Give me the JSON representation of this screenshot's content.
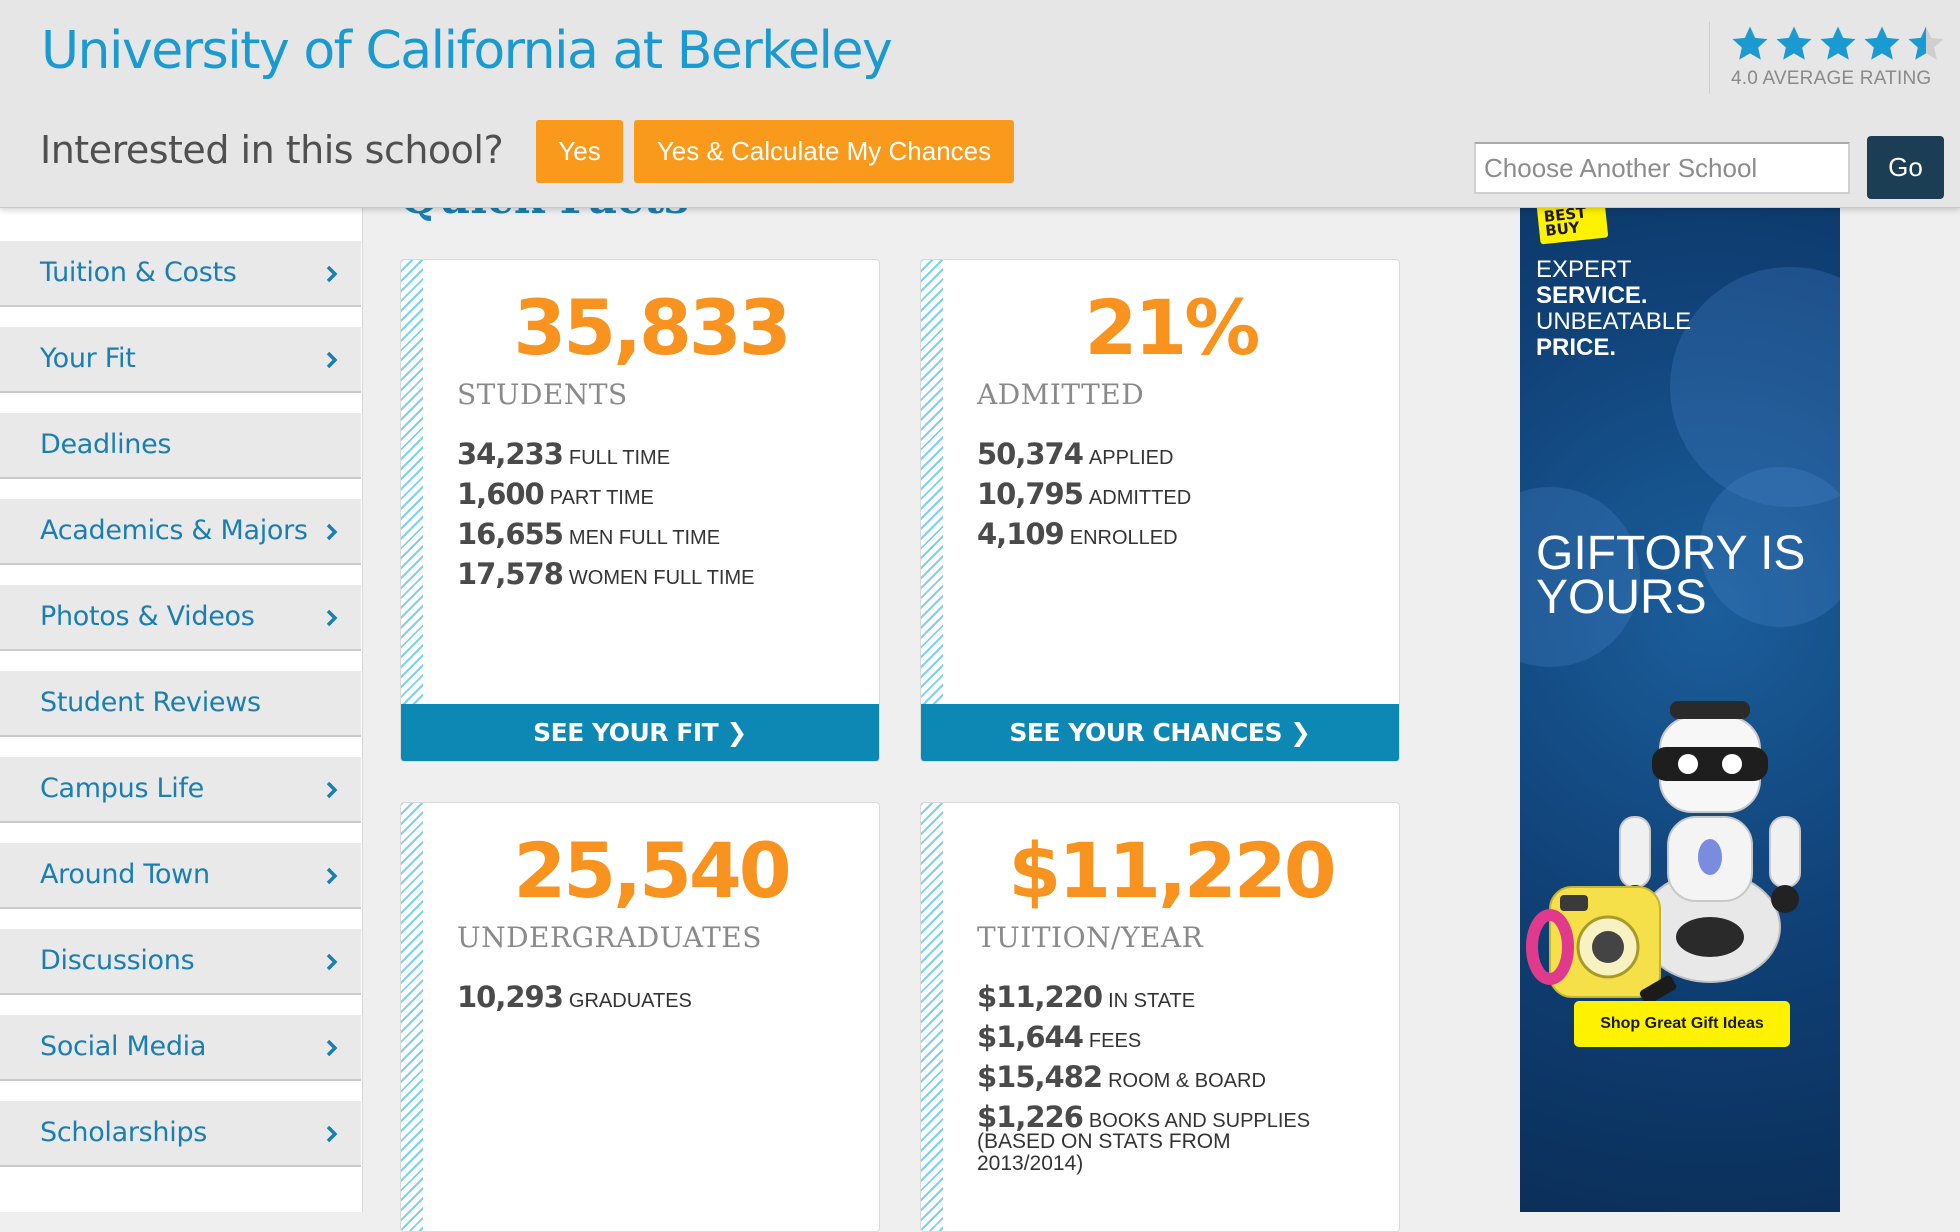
{
  "header": {
    "school_name": "University of California at Berkeley",
    "rating": 4.0,
    "rating_label": "4.0 AVERAGE RATING",
    "interest_question": "Interested in this school?",
    "yes_button": "Yes",
    "calc_button": "Yes & Calculate My Chances",
    "search": {
      "placeholder": "Choose Another School",
      "value": ""
    },
    "go_button": "Go"
  },
  "sidebar": {
    "items": [
      {
        "label": "Tuition & Costs",
        "has_chevron": true
      },
      {
        "label": "Your Fit",
        "has_chevron": true
      },
      {
        "label": "Deadlines",
        "has_chevron": false
      },
      {
        "label": "Academics & Majors",
        "has_chevron": true
      },
      {
        "label": "Photos & Videos",
        "has_chevron": true
      },
      {
        "label": "Student Reviews",
        "has_chevron": false
      },
      {
        "label": "Campus Life",
        "has_chevron": true
      },
      {
        "label": "Around Town",
        "has_chevron": true
      },
      {
        "label": "Discussions",
        "has_chevron": true
      },
      {
        "label": "Social Media",
        "has_chevron": true
      },
      {
        "label": "Scholarships",
        "has_chevron": true
      }
    ]
  },
  "main": {
    "heading": "Quick Facts",
    "cards": {
      "students": {
        "big": "35,833",
        "label": "STUDENTS",
        "stats": [
          {
            "num": "34,233",
            "text": "FULL TIME"
          },
          {
            "num": "1,600",
            "text": "PART TIME"
          },
          {
            "num": "16,655",
            "text": "MEN FULL TIME"
          },
          {
            "num": "17,578",
            "text": "WOMEN FULL TIME"
          }
        ],
        "cta": "SEE YOUR FIT ❯"
      },
      "admitted": {
        "big": "21%",
        "label": "ADMITTED",
        "stats": [
          {
            "num": "50,374",
            "text": "APPLIED"
          },
          {
            "num": "10,795",
            "text": "ADMITTED"
          },
          {
            "num": "4,109",
            "text": "ENROLLED"
          }
        ],
        "cta": "SEE YOUR CHANCES ❯"
      },
      "undergraduates": {
        "big": "25,540",
        "label": "UNDERGRADUATES",
        "stats": [
          {
            "num": "10,293",
            "text": "GRADUATES"
          }
        ]
      },
      "tuition": {
        "big": "$11,220",
        "label": "TUITION/YEAR",
        "stats": [
          {
            "num": "$11,220",
            "text": "IN STATE"
          },
          {
            "num": "$1,644",
            "text": "FEES"
          },
          {
            "num": "$15,482",
            "text": "ROOM & BOARD"
          },
          {
            "num": "$1,226",
            "text": "BOOKS AND SUPPLIES"
          }
        ],
        "note": "(BASED ON STATS FROM 2013/2014)"
      }
    }
  },
  "ad": {
    "logo_text_1": "BEST",
    "logo_text_2": "BUY",
    "tagline_1": "EXPERT",
    "tagline_2": "SERVICE.",
    "tagline_3": "UNBEATABLE",
    "tagline_4": "PRICE.",
    "headline_1": "GIFTORY IS",
    "headline_2": "YOURS",
    "button": "Shop Great Gift Ideas",
    "colors": {
      "background": "#0f3f74",
      "accent": "#fff200"
    }
  },
  "colors": {
    "brand_blue": "#1a9ad1",
    "orange": "#f99a1d",
    "cta_blue": "#0d87b4",
    "go_navy": "#1c3e55"
  }
}
